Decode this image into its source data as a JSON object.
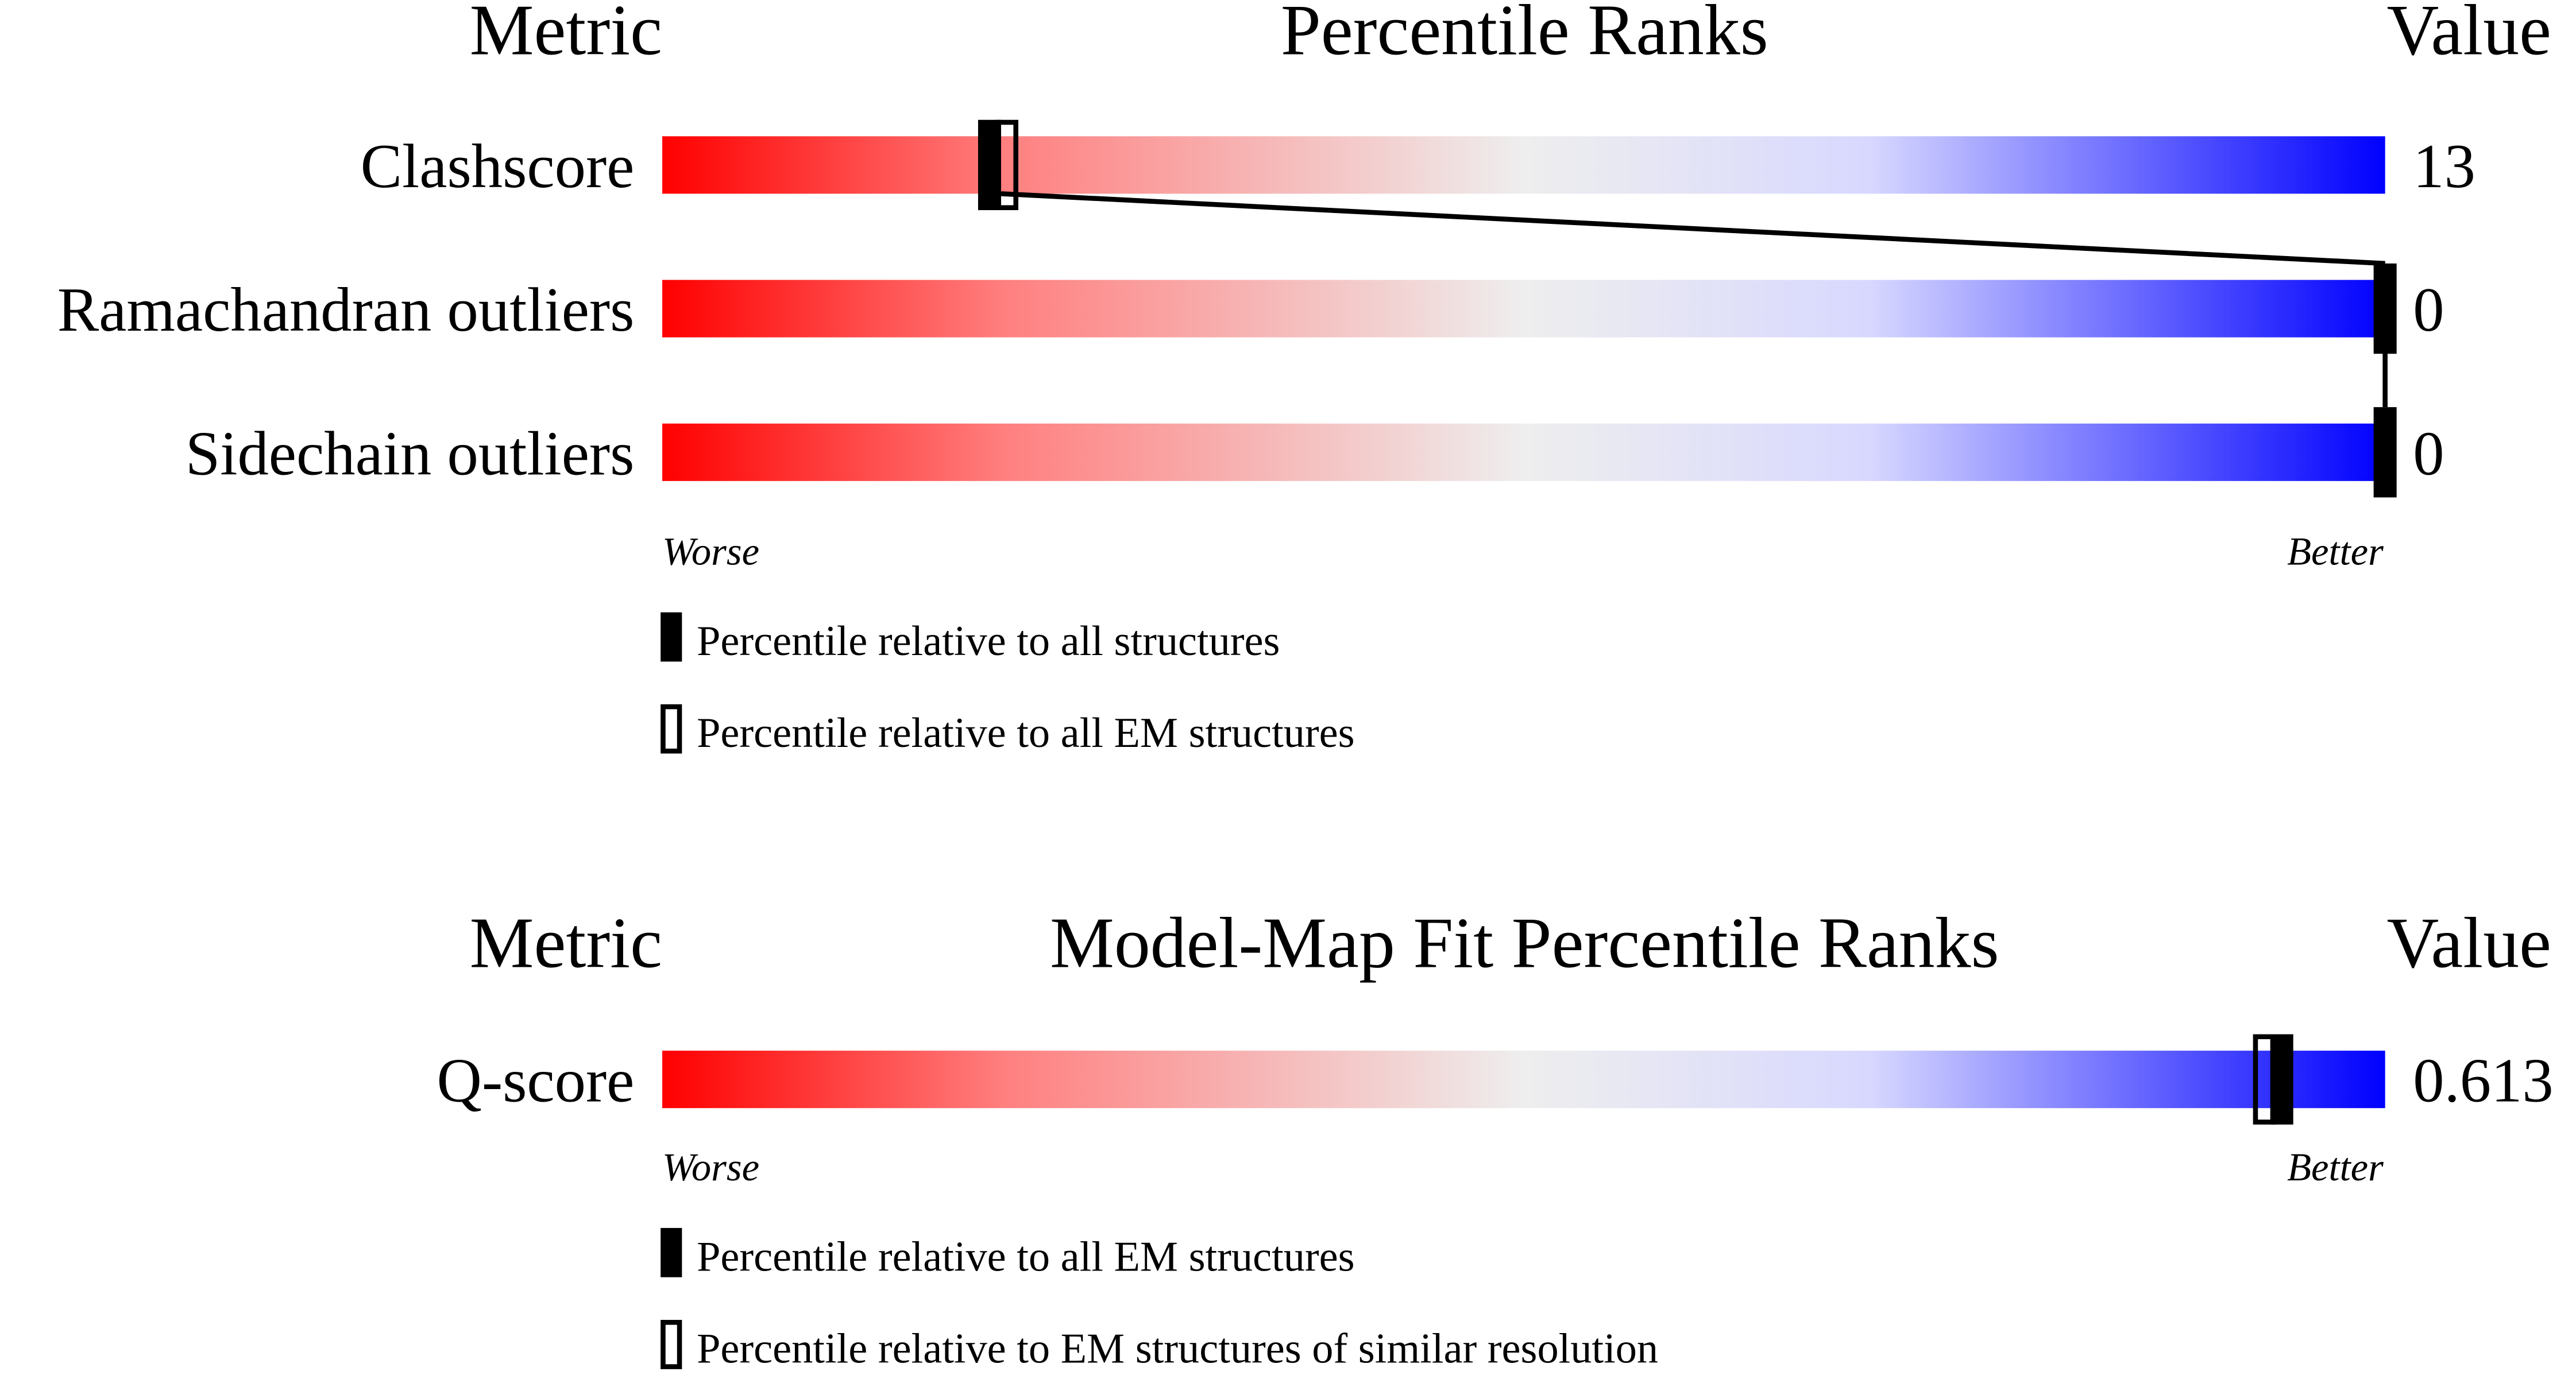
{
  "chart_data": [
    {
      "type": "percentile-rank-bars",
      "headers": {
        "metric": "Metric",
        "title": "Percentile Ranks",
        "value": "Value"
      },
      "xlim": [
        0,
        100
      ],
      "gradient_colors": [
        "#ff0000",
        "#ff8080",
        "#eeeeee",
        "#d8d8ff",
        "#0000ff"
      ],
      "rows": [
        {
          "metric": "Clashscore",
          "value": "13",
          "percentile_all": 19,
          "percentile_em": 20
        },
        {
          "metric": "Ramachandran outliers",
          "value": "0",
          "percentile_all": 100
        },
        {
          "metric": "Sidechain outliers",
          "value": "0",
          "percentile_all": 100
        }
      ],
      "worse_label": "Worse",
      "better_label": "Better",
      "legend": [
        {
          "marker": "filled",
          "label": "Percentile relative to all structures"
        },
        {
          "marker": "open",
          "label": "Percentile relative to all EM structures"
        }
      ]
    },
    {
      "type": "percentile-rank-bars",
      "headers": {
        "metric": "Metric",
        "title": "Model-Map Fit Percentile Ranks",
        "value": "Value"
      },
      "xlim": [
        0,
        100
      ],
      "gradient_colors": [
        "#ff0000",
        "#ff8080",
        "#eeeeee",
        "#d8d8ff",
        "#0000ff"
      ],
      "rows": [
        {
          "metric": "Q-score",
          "value": "0.613",
          "percentile_all": 94,
          "percentile_em": 93
        }
      ],
      "worse_label": "Worse",
      "better_label": "Better",
      "legend": [
        {
          "marker": "filled",
          "label": "Percentile relative to all EM structures"
        },
        {
          "marker": "open",
          "label": "Percentile relative to EM structures of similar resolution"
        }
      ]
    }
  ]
}
